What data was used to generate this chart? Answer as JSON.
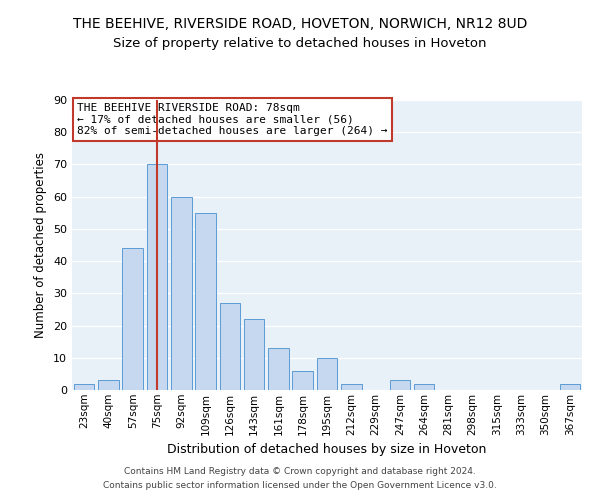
{
  "title": "THE BEEHIVE, RIVERSIDE ROAD, HOVETON, NORWICH, NR12 8UD",
  "subtitle": "Size of property relative to detached houses in Hoveton",
  "xlabel": "Distribution of detached houses by size in Hoveton",
  "ylabel": "Number of detached properties",
  "bar_labels": [
    "23sqm",
    "40sqm",
    "57sqm",
    "75sqm",
    "92sqm",
    "109sqm",
    "126sqm",
    "143sqm",
    "161sqm",
    "178sqm",
    "195sqm",
    "212sqm",
    "229sqm",
    "247sqm",
    "264sqm",
    "281sqm",
    "298sqm",
    "315sqm",
    "333sqm",
    "350sqm",
    "367sqm"
  ],
  "bar_values": [
    2,
    3,
    44,
    70,
    60,
    55,
    27,
    22,
    13,
    6,
    10,
    2,
    0,
    3,
    2,
    0,
    0,
    0,
    0,
    0,
    2
  ],
  "bar_color": "#c5d8f0",
  "bar_edgecolor": "#5b9bd5",
  "vline_color": "#c0392b",
  "annotation_title": "THE BEEHIVE RIVERSIDE ROAD: 78sqm",
  "annotation_line1": "← 17% of detached houses are smaller (56)",
  "annotation_line2": "82% of semi-detached houses are larger (264) →",
  "annotation_box_color": "#c0392b",
  "ylim": [
    0,
    90
  ],
  "yticks": [
    0,
    10,
    20,
    30,
    40,
    50,
    60,
    70,
    80,
    90
  ],
  "footer1": "Contains HM Land Registry data © Crown copyright and database right 2024.",
  "footer2": "Contains public sector information licensed under the Open Government Licence v3.0.",
  "bg_color": "#e8f0f8",
  "fig_bg": "#ffffff",
  "title_fontsize": 10,
  "subtitle_fontsize": 9.5
}
